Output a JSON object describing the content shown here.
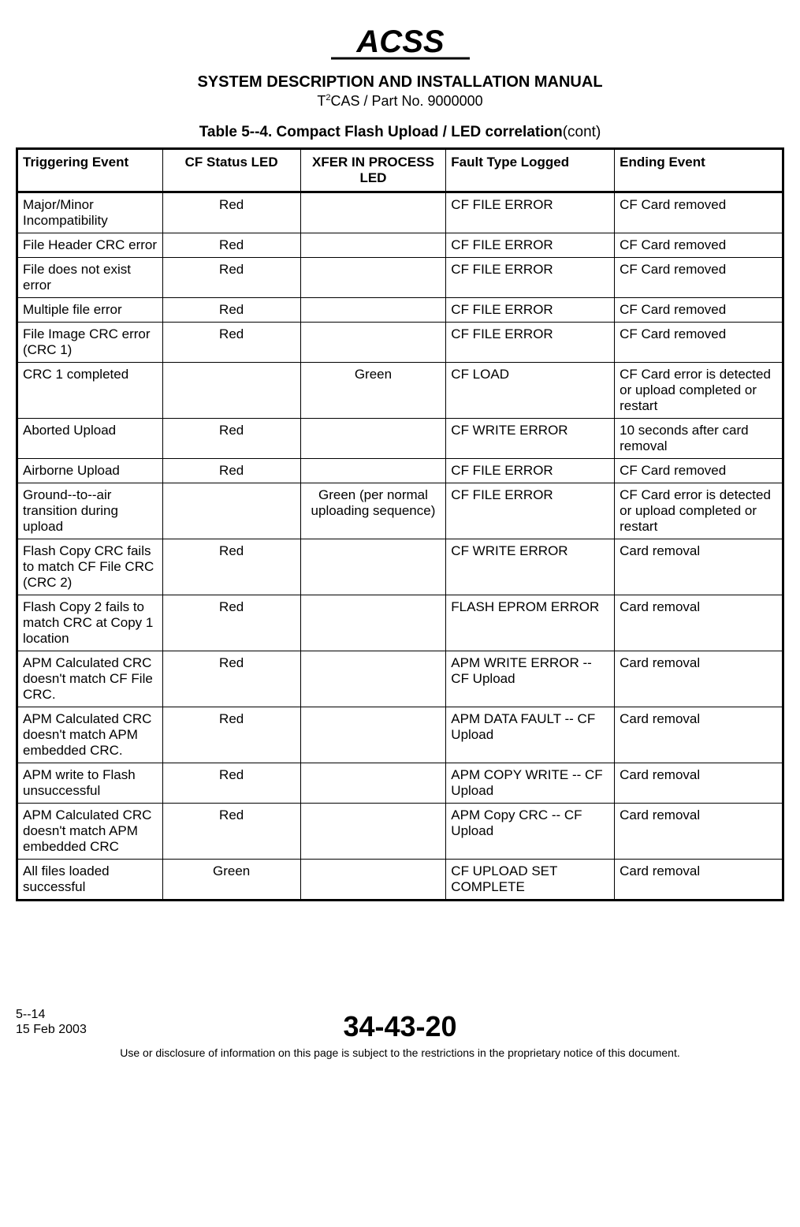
{
  "logo_text": "ACSS",
  "header": {
    "title": "SYSTEM DESCRIPTION AND INSTALLATION MANUAL",
    "sub_prefix": "T",
    "sub_super": "2",
    "sub_rest": "CAS / Part No. 9000000"
  },
  "table": {
    "title_prefix": "Table 5--4.  Compact Flash Upload / LED correlation",
    "title_cont": "(cont)",
    "headers": {
      "trigger": "Triggering Event",
      "cf": "CF Status LED",
      "xfer": "XFER IN PROCESS LED",
      "fault": "Fault Type Logged",
      "end": "Ending Event"
    },
    "rows": [
      {
        "trigger": "Major/Minor Incompatibility",
        "cf": "Red",
        "xfer": "",
        "fault": "CF FILE ERROR",
        "end": "CF Card removed"
      },
      {
        "trigger": "File Header CRC error",
        "cf": "Red",
        "xfer": "",
        "fault": "CF FILE ERROR",
        "end": "CF Card removed"
      },
      {
        "trigger": "File does not exist error",
        "cf": "Red",
        "xfer": "",
        "fault": "CF FILE ERROR",
        "end": "CF Card removed"
      },
      {
        "trigger": "Multiple file error",
        "cf": "Red",
        "xfer": "",
        "fault": "CF FILE ERROR",
        "end": "CF Card removed"
      },
      {
        "trigger": "File Image CRC error (CRC 1)",
        "cf": "Red",
        "xfer": "",
        "fault": "CF FILE ERROR",
        "end": "CF Card removed"
      },
      {
        "trigger": "CRC 1 completed",
        "cf": "",
        "xfer": "Green",
        "fault": "CF LOAD",
        "end": "CF Card error is detected or upload completed or restart"
      },
      {
        "trigger": "Aborted Upload",
        "cf": "Red",
        "xfer": "",
        "fault": "CF WRITE ERROR",
        "end": "10 seconds after card removal"
      },
      {
        "trigger": "Airborne Upload",
        "cf": "Red",
        "xfer": "",
        "fault": "CF FILE ERROR",
        "end": "CF Card removed"
      },
      {
        "trigger": "Ground--to--air transition during upload",
        "cf": "",
        "xfer": "Green (per normal uploading sequence)",
        "fault": "CF FILE ERROR",
        "end": "CF Card error is detected or upload completed or restart"
      },
      {
        "trigger": "Flash Copy CRC fails to match CF File CRC (CRC 2)",
        "cf": "Red",
        "xfer": "",
        "fault": "CF WRITE ERROR",
        "end": "Card removal"
      },
      {
        "trigger": "Flash Copy 2 fails to match CRC at Copy 1 location",
        "cf": "Red",
        "xfer": "",
        "fault": "FLASH EPROM ERROR",
        "end": "Card removal"
      },
      {
        "trigger": "APM Calculated CRC doesn't match CF File CRC.",
        "cf": "Red",
        "xfer": "",
        "fault": "APM WRITE ERROR -- CF Upload",
        "end": "Card removal"
      },
      {
        "trigger": "APM Calculated CRC doesn't match APM embedded CRC.",
        "cf": "Red",
        "xfer": "",
        "fault": "APM DATA FAULT -- CF Upload",
        "end": "Card removal"
      },
      {
        "trigger": "APM write to Flash unsuccessful",
        "cf": "Red",
        "xfer": "",
        "fault": "APM COPY WRITE -- CF Upload",
        "end": "Card removal"
      },
      {
        "trigger": "APM Calculated CRC doesn't match APM embedded CRC",
        "cf": "Red",
        "xfer": "",
        "fault": "APM Copy CRC -- CF Upload",
        "end": "Card removal"
      },
      {
        "trigger": "All files loaded successful",
        "cf": "Green",
        "xfer": "",
        "fault": "CF UPLOAD SET COMPLETE",
        "end": "Card removal"
      }
    ]
  },
  "footer": {
    "page": "5--14",
    "date": "15 Feb 2003",
    "docnum": "34-43-20",
    "disclaimer": "Use or disclosure of information on this page is subject to the restrictions in the proprietary notice of this document."
  }
}
